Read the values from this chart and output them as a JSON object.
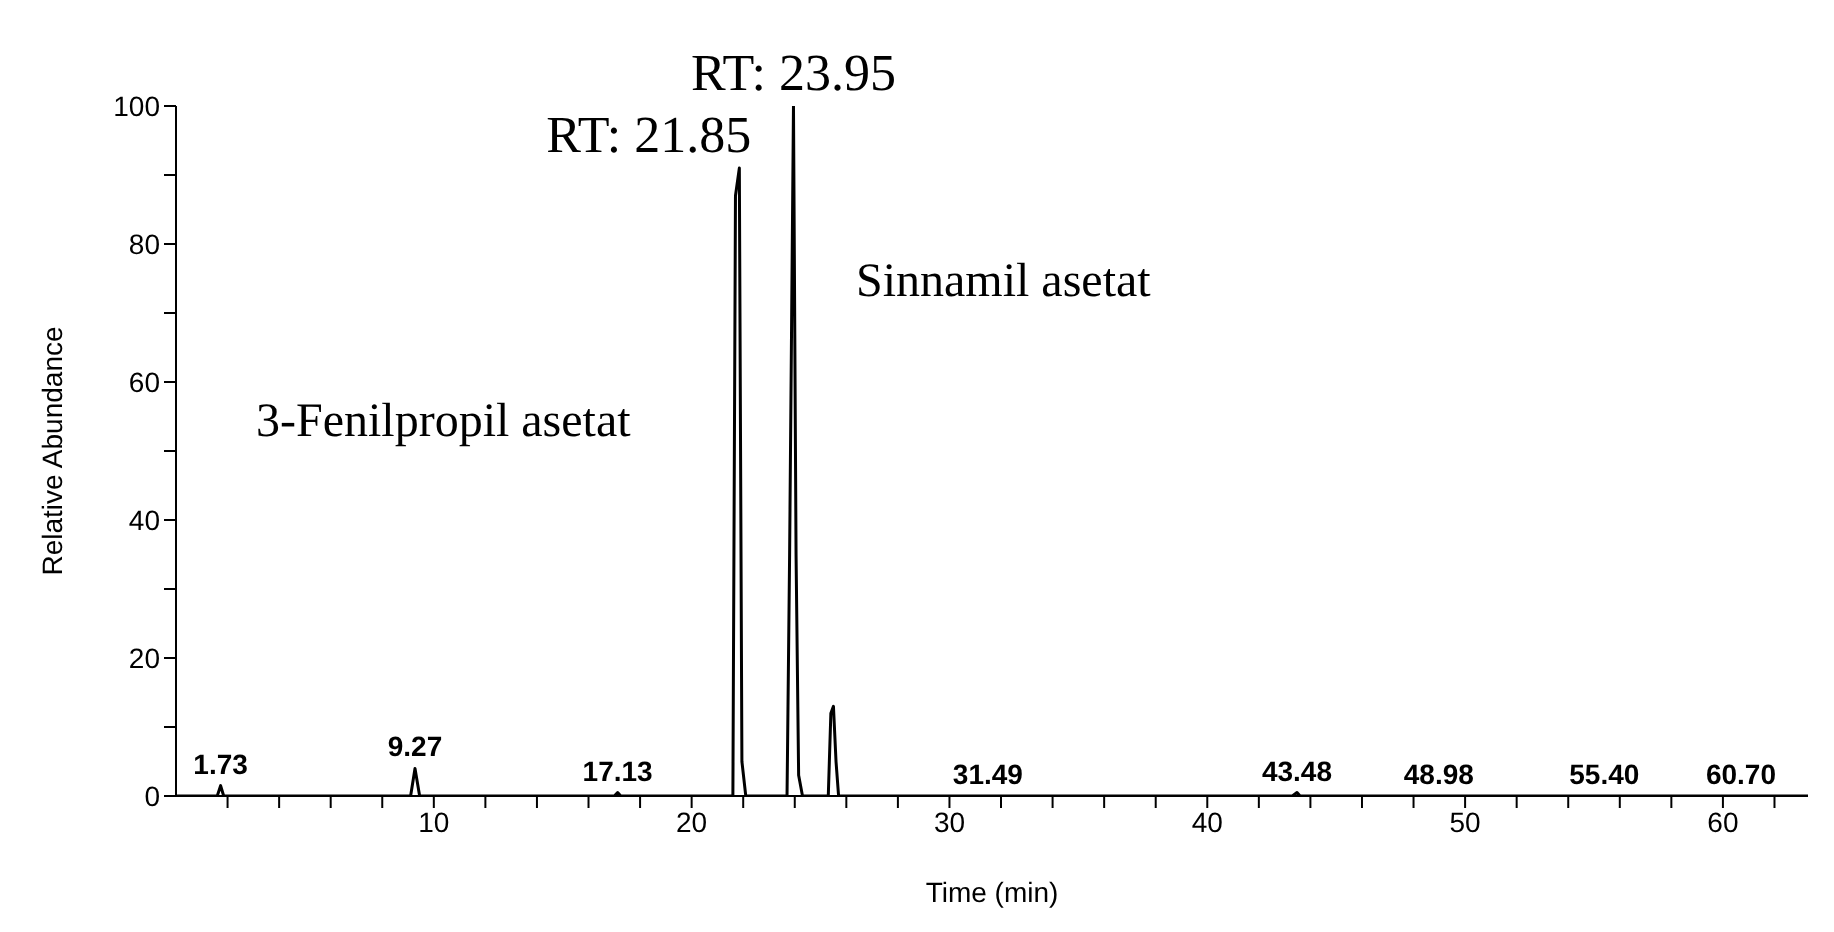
{
  "chart_data": {
    "type": "line",
    "xlabel": "Time (min)",
    "ylabel": "Relative Abundance",
    "x": [
      0,
      1.6,
      1.73,
      1.85,
      9.1,
      9.27,
      9.45,
      17.0,
      17.13,
      17.25,
      21.6,
      21.7,
      21.85,
      21.95,
      22.1,
      23.7,
      23.8,
      23.95,
      24.05,
      24.15,
      24.3,
      25.3,
      25.4,
      25.5,
      25.6,
      25.7,
      43.3,
      43.48,
      43.6,
      63.3
    ],
    "series": [
      {
        "color": "#000000",
        "values": [
          0,
          0,
          1.5,
          0,
          0,
          4,
          0,
          0,
          0.5,
          0,
          0,
          87,
          91,
          5,
          0,
          0,
          35,
          100,
          35,
          3,
          0,
          0,
          12,
          13,
          5,
          0,
          0,
          0.5,
          0,
          0
        ]
      }
    ],
    "xlim": [
      0,
      63.3
    ],
    "xticks": [
      {
        "value": 2,
        "label": null
      },
      {
        "value": 4,
        "label": null
      },
      {
        "value": 6,
        "label": null
      },
      {
        "value": 8,
        "label": null
      },
      10,
      {
        "value": 12,
        "label": null
      },
      {
        "value": 14,
        "label": null
      },
      {
        "value": 16,
        "label": null
      },
      {
        "value": 18,
        "label": null
      },
      20,
      {
        "value": 22,
        "label": null
      },
      {
        "value": 24,
        "label": null
      },
      {
        "value": 26,
        "label": null
      },
      {
        "value": 28,
        "label": null
      },
      30,
      {
        "value": 32,
        "label": null
      },
      {
        "value": 34,
        "label": null
      },
      {
        "value": 36,
        "label": null
      },
      {
        "value": 38,
        "label": null
      },
      40,
      {
        "value": 42,
        "label": null
      },
      {
        "value": 44,
        "label": null
      },
      {
        "value": 46,
        "label": null
      },
      {
        "value": 48,
        "label": null
      },
      50,
      {
        "value": 52,
        "label": null
      },
      {
        "value": 54,
        "label": null
      },
      {
        "value": 56,
        "label": null
      },
      {
        "value": 58,
        "label": null
      },
      60,
      {
        "value": 62,
        "label": null
      }
    ],
    "ylim": [
      0,
      100
    ],
    "yticks": [
      0,
      {
        "value": 10,
        "label": null
      },
      20,
      {
        "value": 30,
        "label": null
      },
      40,
      {
        "value": 50,
        "label": null
      },
      60,
      {
        "value": 70,
        "label": null
      },
      80,
      {
        "value": 90,
        "label": null
      },
      100
    ],
    "grid": false,
    "legend": false,
    "marker": "none",
    "line_style": "solid",
    "annotations": [
      {
        "text": "1.73",
        "x": 1.73,
        "y": 1.5
      },
      {
        "text": "9.27",
        "x": 9.27,
        "y": 4
      },
      {
        "text": "17.13",
        "x": 17.13,
        "y": 0.5
      },
      {
        "text": "RT: 21.85",
        "x": 21.85,
        "y": 91
      },
      {
        "text": "RT: 23.95",
        "x": 23.95,
        "y": 100
      },
      {
        "text": "31.49",
        "x": 31.49,
        "y": 0
      },
      {
        "text": "43.48",
        "x": 43.48,
        "y": 0.5
      },
      {
        "text": "48.98",
        "x": 48.98,
        "y": 0
      },
      {
        "text": "55.40",
        "x": 55.4,
        "y": 0
      },
      {
        "text": "60.70",
        "x": 60.7,
        "y": 0
      },
      "3-Fenilpropil asetat",
      "Sinnamil asetat"
    ]
  }
}
